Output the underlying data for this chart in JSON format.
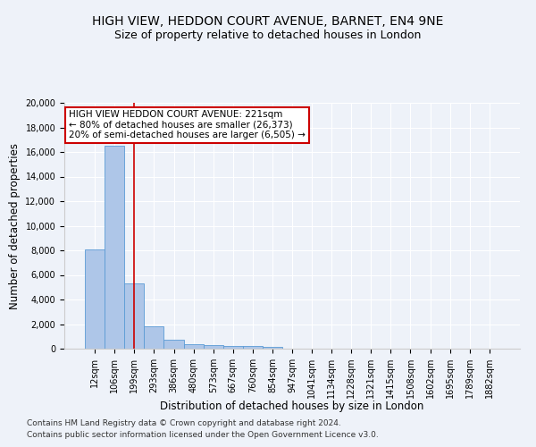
{
  "title": "HIGH VIEW, HEDDON COURT AVENUE, BARNET, EN4 9NE",
  "subtitle": "Size of property relative to detached houses in London",
  "xlabel": "Distribution of detached houses by size in London",
  "ylabel": "Number of detached properties",
  "categories": [
    "12sqm",
    "106sqm",
    "199sqm",
    "293sqm",
    "386sqm",
    "480sqm",
    "573sqm",
    "667sqm",
    "760sqm",
    "854sqm",
    "947sqm",
    "1041sqm",
    "1134sqm",
    "1228sqm",
    "1321sqm",
    "1415sqm",
    "1508sqm",
    "1602sqm",
    "1695sqm",
    "1789sqm",
    "1882sqm"
  ],
  "values": [
    8100,
    16500,
    5300,
    1850,
    700,
    380,
    290,
    230,
    200,
    140,
    0,
    0,
    0,
    0,
    0,
    0,
    0,
    0,
    0,
    0,
    0
  ],
  "bar_color": "#aec6e8",
  "bar_edge_color": "#5b9bd5",
  "vline_x": 2,
  "vline_color": "#cc0000",
  "annotation_text": "HIGH VIEW HEDDON COURT AVENUE: 221sqm\n← 80% of detached houses are smaller (26,373)\n20% of semi-detached houses are larger (6,505) →",
  "annotation_box_color": "#cc0000",
  "ylim": [
    0,
    20000
  ],
  "yticks": [
    0,
    2000,
    4000,
    6000,
    8000,
    10000,
    12000,
    14000,
    16000,
    18000,
    20000
  ],
  "footnote1": "Contains HM Land Registry data © Crown copyright and database right 2024.",
  "footnote2": "Contains public sector information licensed under the Open Government Licence v3.0.",
  "background_color": "#eef2f9",
  "grid_color": "#ffffff",
  "title_fontsize": 10,
  "subtitle_fontsize": 9,
  "axis_label_fontsize": 8.5,
  "tick_fontsize": 7,
  "footnote_fontsize": 6.5,
  "annotation_fontsize": 7.5
}
